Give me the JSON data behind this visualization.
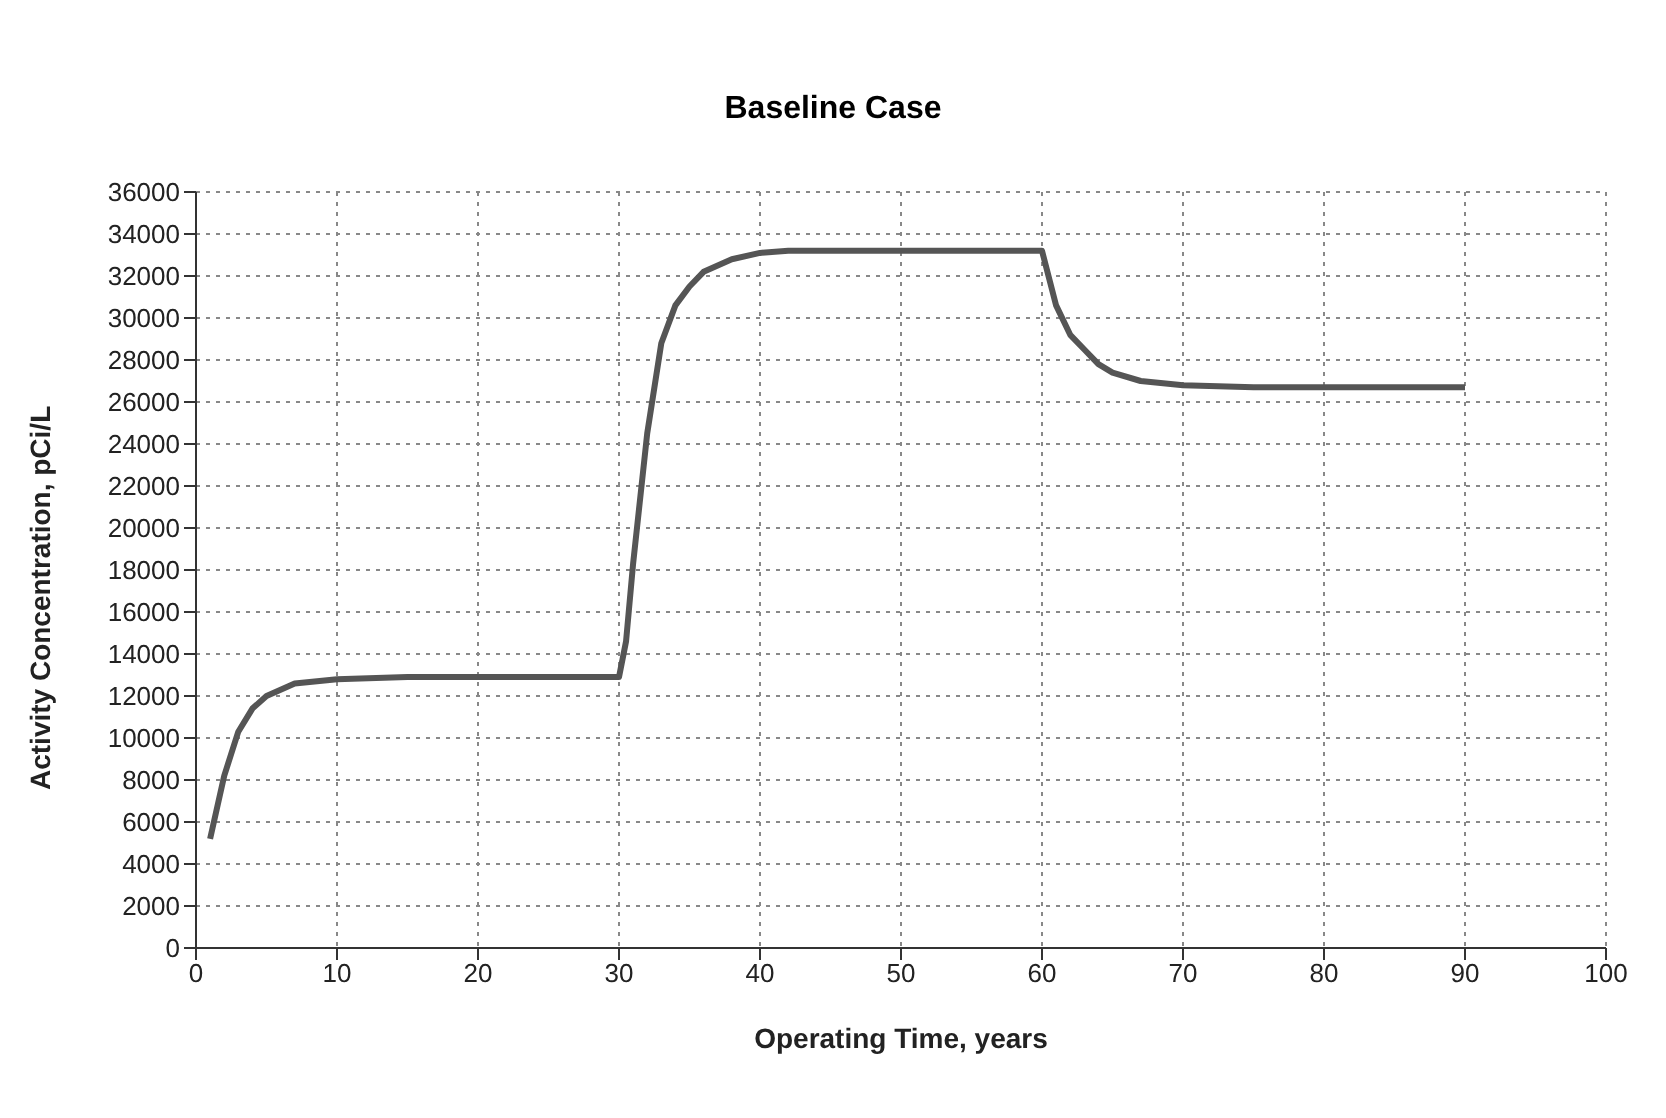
{
  "chart_data": {
    "type": "line",
    "title": "Baseline Case",
    "xlabel": "Operating Time, years",
    "ylabel": "Activity Concentration, pCi/L",
    "x": [
      1,
      2,
      3,
      4,
      5,
      7,
      10,
      15,
      20,
      25,
      30,
      30.5,
      31,
      32,
      33,
      34,
      35,
      36,
      38,
      40,
      42,
      50,
      60,
      61,
      62,
      63,
      64,
      65,
      67,
      70,
      75,
      80,
      90
    ],
    "series": [
      {
        "color": "#555555",
        "values": [
          5200,
          8200,
          10300,
          11400,
          12000,
          12600,
          12800,
          12900,
          12900,
          12900,
          12900,
          14600,
          18300,
          24500,
          28800,
          30600,
          31500,
          32200,
          32800,
          33100,
          33200,
          33200,
          33200,
          30600,
          29200,
          28500,
          27800,
          27400,
          27000,
          26800,
          26700,
          26700,
          26700
        ]
      }
    ],
    "xlim": [
      0,
      100
    ],
    "xticks": [
      0,
      10,
      20,
      30,
      40,
      50,
      60,
      70,
      80,
      90,
      100
    ],
    "ylim": [
      0,
      36000
    ],
    "yticks": [
      0,
      2000,
      4000,
      6000,
      8000,
      10000,
      12000,
      14000,
      16000,
      18000,
      20000,
      22000,
      24000,
      26000,
      28000,
      30000,
      32000,
      34000,
      36000
    ],
    "grid": true,
    "marker": "none",
    "line_style": "solid"
  }
}
